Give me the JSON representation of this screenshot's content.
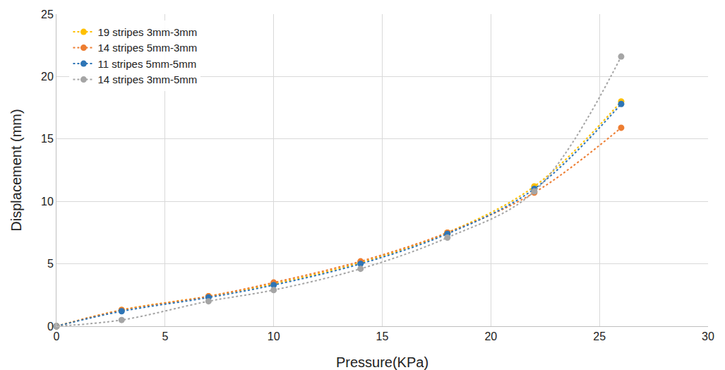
{
  "chart_data": {
    "type": "line",
    "x_label": "Pressure(KPa)",
    "y_label": "Displacement (mm)",
    "x": [
      0,
      3,
      7,
      10,
      14,
      18,
      22,
      26
    ],
    "series": [
      {
        "name": "19 stripes 3mm-3mm",
        "color": "#ffc000",
        "values": [
          0,
          1.3,
          2.4,
          3.4,
          5.1,
          7.5,
          11.2,
          18.0
        ]
      },
      {
        "name": "14 stripes 5mm-3mm",
        "color": "#ed7d31",
        "values": [
          0,
          1.3,
          2.4,
          3.5,
          5.2,
          7.5,
          10.7,
          15.9
        ]
      },
      {
        "name": "11 stripes 5mm-5mm",
        "color": "#2e75b6",
        "values": [
          0,
          1.2,
          2.3,
          3.3,
          5.0,
          7.4,
          11.0,
          17.8
        ]
      },
      {
        "name": "14 stripes 3mm-5mm",
        "color": "#a5a5a5",
        "values": [
          0,
          0.5,
          2.0,
          2.9,
          4.6,
          7.1,
          10.8,
          21.6
        ]
      }
    ],
    "xlim": [
      0,
      30
    ],
    "xticks": [
      0,
      5,
      10,
      15,
      20,
      25,
      30
    ],
    "ylim": [
      0,
      25
    ],
    "yticks": [
      0,
      5,
      10,
      15,
      20,
      25
    ],
    "grid": true,
    "legend": "upper left",
    "marker": "circle",
    "line_style": "dotted"
  }
}
